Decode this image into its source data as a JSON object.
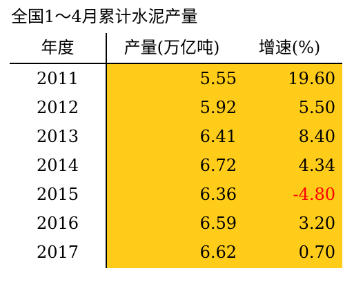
{
  "chart_data": {
    "type": "table",
    "title": "全国1～4月累计水泥产量",
    "columns": [
      "年度",
      "产量(万亿吨)",
      "增速(%)"
    ],
    "rows": [
      {
        "year": "2011",
        "output": "5.55",
        "growth": "19.60",
        "negative": false
      },
      {
        "year": "2012",
        "output": "5.92",
        "growth": "5.50",
        "negative": false
      },
      {
        "year": "2013",
        "output": "6.41",
        "growth": "8.40",
        "negative": false
      },
      {
        "year": "2014",
        "output": "6.72",
        "growth": "4.34",
        "negative": false
      },
      {
        "year": "2015",
        "output": "6.36",
        "growth": "-4.80",
        "negative": true
      },
      {
        "year": "2016",
        "output": "6.59",
        "growth": "3.20",
        "negative": false
      },
      {
        "year": "2017",
        "output": "6.62",
        "growth": "0.70",
        "negative": false
      }
    ],
    "colors": {
      "highlight": "#ffcc1a",
      "text": "#000000",
      "negative": "#ff0000"
    }
  }
}
